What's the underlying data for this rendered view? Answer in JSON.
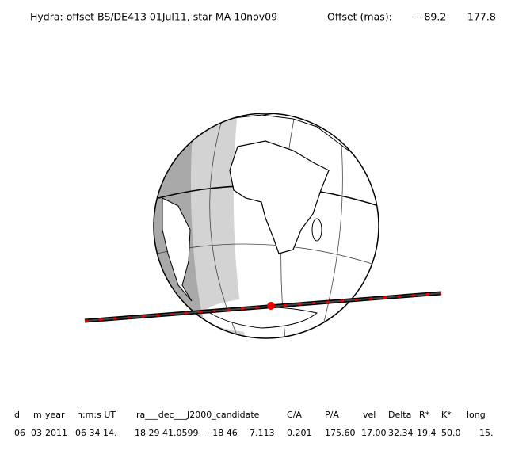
{
  "header": {
    "title": "Hydra: offset BS/DE413 01Jul11, star MA 10nov09",
    "offset_label": "Offset (mas):",
    "offset_ra": "−89.2",
    "offset_dec": "177.8"
  },
  "table": {
    "headers": [
      "d",
      "m",
      "year",
      "h:m:s UT",
      "ra___dec___J2000_candidate",
      "C/A",
      "P/A",
      "vel",
      "Delta",
      "R*",
      "K*",
      "long"
    ],
    "rows": [
      [
        "06",
        "03",
        "2011",
        "06 34 14.",
        "18 29 41.0599",
        "−18 46",
        "7.113",
        "0.201",
        "175.60",
        "17.00",
        "32.34",
        "19.4",
        "50.0",
        "15."
      ]
    ]
  }
}
